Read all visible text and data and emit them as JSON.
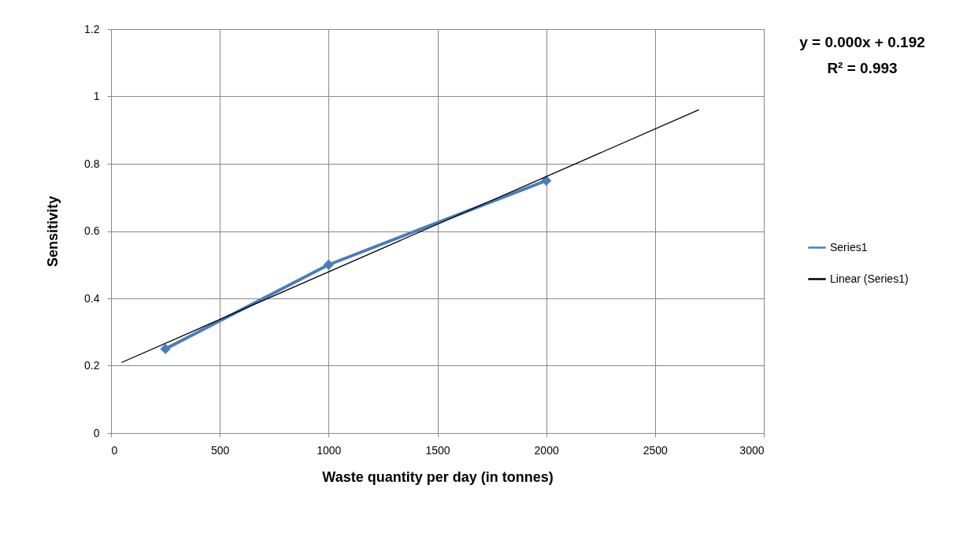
{
  "chart_data": {
    "type": "line",
    "xlabel": "Waste quantity per day (in tonnes)",
    "ylabel": "Sensitivity",
    "annotations": [
      "y = 0.000x + 0.192",
      "R² = 0.993"
    ],
    "series": [
      {
        "name": "Series1",
        "color": "#4a7ebb",
        "x": [
          250,
          1000,
          2000
        ],
        "values": [
          0.25,
          0.5,
          0.75
        ],
        "marker": "diamond"
      },
      {
        "name": "Linear (Series1)",
        "color": "#000000",
        "x": [
          50,
          2700
        ],
        "values": [
          0.21,
          0.96
        ],
        "marker": "none"
      }
    ],
    "xlim": [
      0,
      3000
    ],
    "xticks": [
      0,
      500,
      1000,
      1500,
      2000,
      2500,
      3000
    ],
    "ylim": [
      0,
      1.2
    ],
    "yticks": [
      0,
      0.2,
      0.4,
      0.6,
      0.8,
      1,
      1.2
    ],
    "grid": true,
    "legend": "right"
  }
}
